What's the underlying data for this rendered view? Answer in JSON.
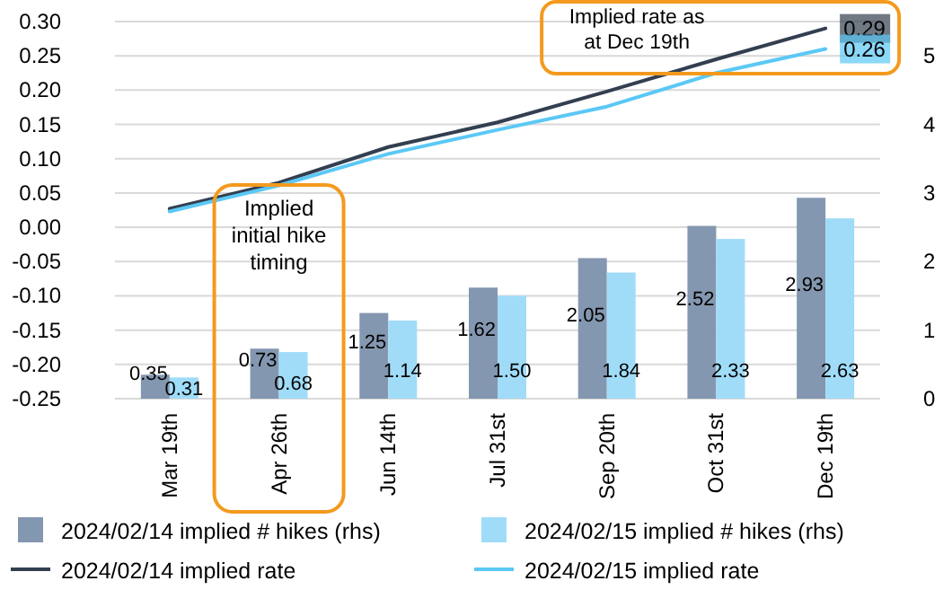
{
  "chart_data": {
    "type": "bar",
    "categories": [
      "Mar 19th",
      "Apr 26th",
      "Jun 14th",
      "Jul 31st",
      "Sep 20th",
      "Oct 31st",
      "Dec 19th"
    ],
    "series": [
      {
        "name": "2024/02/14 implied # hikes (rhs)",
        "color": "#8497b0",
        "axis": "y2",
        "values": [
          0.35,
          0.73,
          1.25,
          1.62,
          2.05,
          2.52,
          2.93
        ],
        "value_labels": [
          "0.35",
          "0.73",
          "1.25",
          "1.62",
          "2.05",
          "2.52",
          "2.93"
        ]
      },
      {
        "name": "2024/02/15 implied # hikes (rhs)",
        "color": "#a0dcf8",
        "axis": "y2",
        "values": [
          0.31,
          0.68,
          1.14,
          1.5,
          1.84,
          2.33,
          2.63
        ],
        "value_labels": [
          "0.31",
          "0.68",
          "1.14",
          "1.50",
          "1.84",
          "2.33",
          "2.63"
        ]
      },
      {
        "name": "2024/02/14 implied rate",
        "type": "line",
        "color": "#333f50",
        "values": [
          0.027,
          0.065,
          0.117,
          0.153,
          0.198,
          0.245,
          0.29
        ],
        "value_labels": [
          null,
          null,
          null,
          null,
          null,
          null,
          "0.29"
        ]
      },
      {
        "name": "2024/02/15 implied rate",
        "type": "line",
        "color": "#5bc8f5",
        "values": [
          0.023,
          0.061,
          0.107,
          0.142,
          0.176,
          0.225,
          0.26
        ],
        "value_labels": [
          null,
          null,
          null,
          null,
          null,
          null,
          "0.26"
        ]
      }
    ],
    "ylim": [
      -0.25,
      0.3
    ],
    "yticks": [
      {
        "value": -0.25,
        "label": "-0.25"
      },
      {
        "value": -0.2,
        "label": "-0.20"
      },
      {
        "value": -0.15,
        "label": "-0.15"
      },
      {
        "value": -0.1,
        "label": "-0.10"
      },
      {
        "value": -0.05,
        "label": "-0.05"
      },
      {
        "value": 0,
        "label": "0.00"
      },
      {
        "value": 0.05,
        "label": "0.05"
      },
      {
        "value": 0.1,
        "label": "0.10"
      },
      {
        "value": 0.15,
        "label": "0.15"
      },
      {
        "value": 0.2,
        "label": "0.20"
      },
      {
        "value": 0.25,
        "label": "0.25"
      },
      {
        "value": 0.3,
        "label": "0.30"
      }
    ],
    "y2lim": [
      0,
      5.5
    ],
    "y2ticks": [
      0,
      1,
      2,
      3,
      4,
      5
    ],
    "grid": "y",
    "legend": "bottom",
    "annotations": [
      "Implied initial hike timing",
      "Implied rate as at Dec 19th"
    ]
  }
}
